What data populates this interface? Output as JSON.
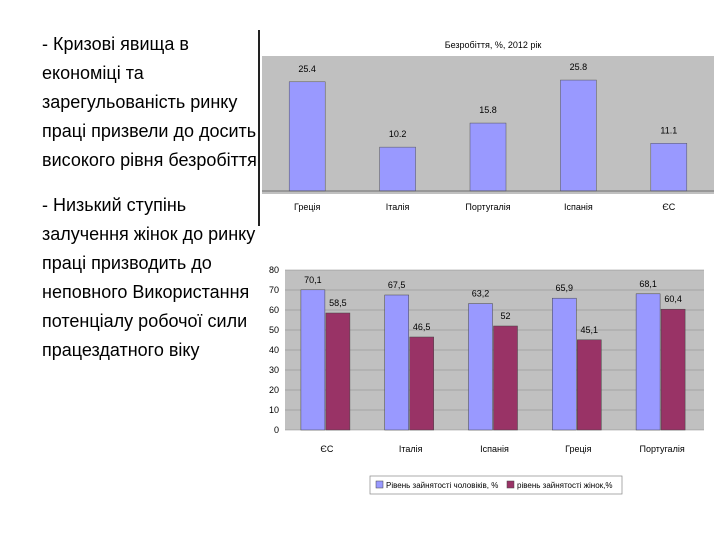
{
  "text": {
    "para1": "-  Кризові явища в економіці та зарегульованість ринку праці призвели до досить високого рівня безробіття",
    "para2": "- Низький ступінь залучення жінок до ринку праці призводить до неповного Використання потенціалу робочої сили працездатного віку"
  },
  "chart_data": [
    {
      "type": "bar",
      "title": "Безробіття, %, 2012 рік",
      "categories": [
        "Греція",
        "Італія",
        "Португалія",
        "Іспанія",
        "ЄС"
      ],
      "values": [
        25.4,
        10.2,
        15.8,
        25.8,
        11.1
      ],
      "value_labels": [
        "25.4",
        "10.2",
        "15.8",
        "25.8",
        "11.1"
      ],
      "colors": {
        "bar": "#9999ff",
        "background": "#c0c0c0"
      },
      "grid": false
    },
    {
      "type": "bar",
      "categories": [
        "ЄС",
        "Італія",
        "Іспанія",
        "Греція",
        "Португалія"
      ],
      "series": [
        {
          "name": "Рівень зайнятості чоловіків, %",
          "values": [
            70.1,
            67.5,
            63.2,
            65.9,
            68.1
          ],
          "labels": [
            "70,1",
            "67,5",
            "63,2",
            "65,9",
            "68,1"
          ],
          "color": "#9999ff"
        },
        {
          "name": "рівень зайнятості жінок,%",
          "values": [
            58.5,
            46.5,
            52,
            45.1,
            60.4
          ],
          "labels": [
            "58,5",
            "46,5",
            "52",
            "45,1",
            "60,4"
          ],
          "color": "#993366"
        }
      ],
      "ylim": [
        0,
        80
      ],
      "yticks": [
        "0",
        "10",
        "20",
        "30",
        "40",
        "50",
        "60",
        "70",
        "80"
      ],
      "legend": "bottom",
      "grid": true,
      "colors": {
        "background": "#c0c0c0",
        "gridline": "#8a8a8a"
      }
    }
  ]
}
